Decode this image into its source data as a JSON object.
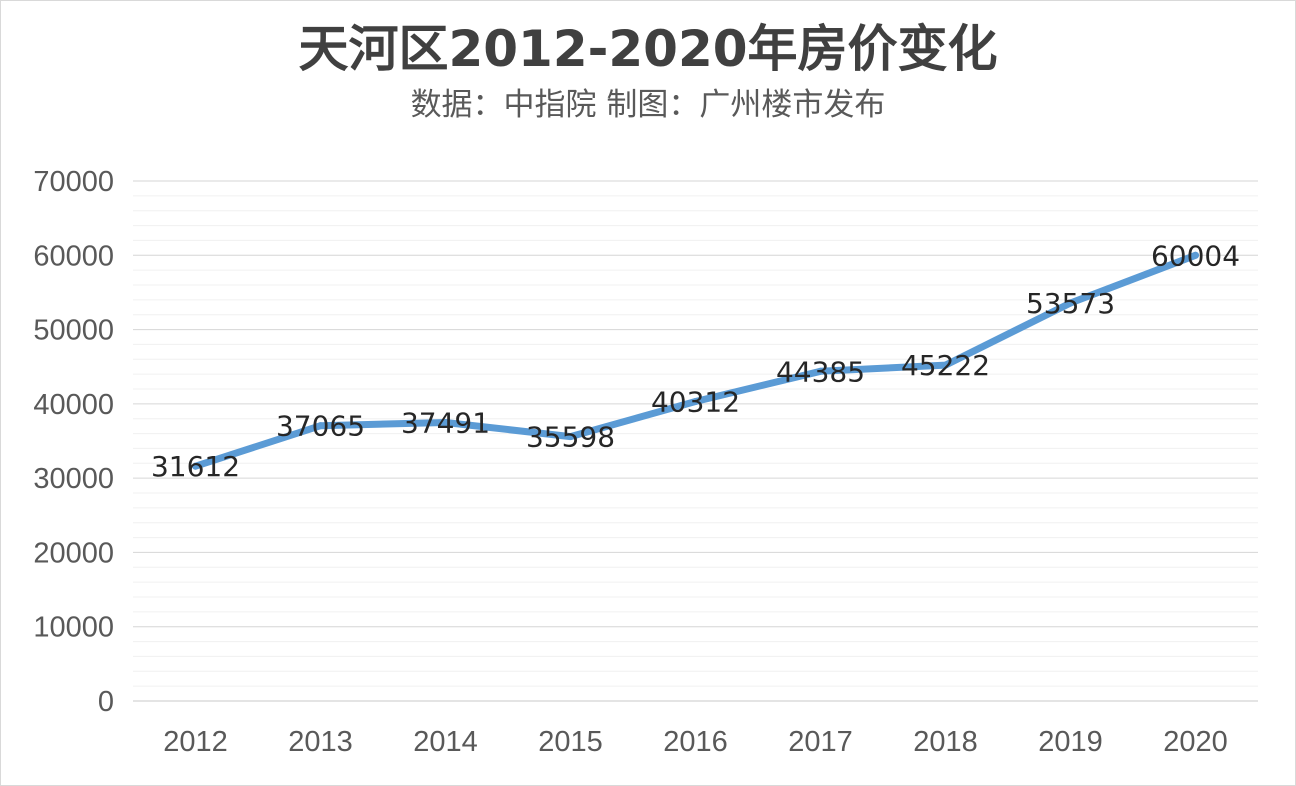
{
  "chart_data": {
    "type": "line",
    "title": "天河区2012-2020年房价变化",
    "subtitle": "数据：中指院 制图：广州楼市发布",
    "xlabel": "",
    "ylabel": "",
    "categories": [
      "2012",
      "2013",
      "2014",
      "2015",
      "2016",
      "2017",
      "2018",
      "2019",
      "2020"
    ],
    "series": [
      {
        "values": [
          31612,
          37065,
          37491,
          35598,
          40312,
          44385,
          45222,
          53573,
          60004
        ],
        "color": "#5b9bd5"
      }
    ],
    "ylim": [
      0,
      70000
    ],
    "yticks": [
      "0",
      "10000",
      "20000",
      "30000",
      "40000",
      "50000",
      "60000",
      "70000"
    ],
    "grid": true,
    "legend": "none"
  }
}
